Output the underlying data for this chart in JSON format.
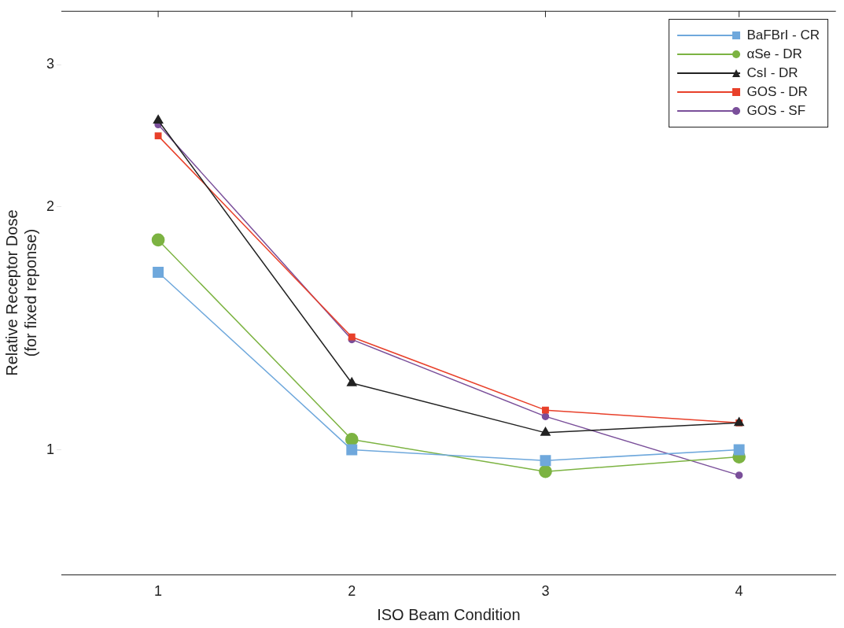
{
  "chart_data": {
    "type": "line",
    "xlabel": "ISO Beam Condition",
    "ylabel": "Relative Receptor Dose\n(for fixed reponse)",
    "x": [
      1,
      2,
      3,
      4
    ],
    "xlim": [
      0.5,
      4.5
    ],
    "xticks": [
      1,
      2,
      3,
      4
    ],
    "ylim": [
      0.7,
      3.5
    ],
    "yticks": [
      1,
      2,
      3
    ],
    "log": "y",
    "grid": false,
    "legend": "top right",
    "series": [
      {
        "name": "BaFBrI - CR",
        "color": "#6fa8dc",
        "marker": "square",
        "values": [
          1.66,
          1.0,
          0.97,
          1.0
        ]
      },
      {
        "name": "αSe - DR",
        "color": "#7cb342",
        "marker": "circle",
        "values": [
          1.82,
          1.03,
          0.94,
          0.98
        ]
      },
      {
        "name": "CsI - DR",
        "color": "#222222",
        "marker": "triangle",
        "values": [
          2.56,
          1.21,
          1.05,
          1.08
        ]
      },
      {
        "name": "GOS - DR",
        "color": "#e8402a",
        "marker": "square",
        "values": [
          2.45,
          1.38,
          1.12,
          1.08
        ]
      },
      {
        "name": "GOS - SF",
        "color": "#7a4f9a",
        "marker": "circle",
        "values": [
          2.53,
          1.37,
          1.1,
          0.93
        ]
      }
    ]
  }
}
